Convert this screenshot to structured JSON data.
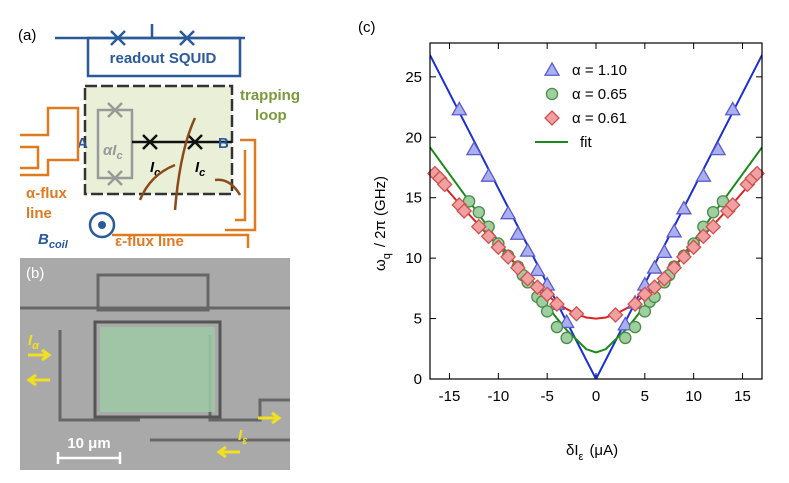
{
  "panel_a": {
    "label": "(a)",
    "squid_label": "readout SQUID",
    "trap_label": [
      "trapping",
      "loop"
    ],
    "node_a": "A",
    "node_b": "B",
    "alpha_ic": {
      "main": "αI",
      "sub": "c"
    },
    "ic_left": {
      "main": "I",
      "sub": "c"
    },
    "ic_right": {
      "main": "I",
      "sub": "c"
    },
    "alpha_flux": [
      "α-flux",
      "line"
    ],
    "eps_flux": "ε-flux line",
    "bcoil": {
      "main": "B",
      "sub": "coil"
    }
  },
  "panel_b": {
    "label": "(b)",
    "i_alpha": {
      "main": "I",
      "sub": "α"
    },
    "i_eps": {
      "main": "I",
      "sub": "ε"
    },
    "scale": "10 μm"
  },
  "chart_data": {
    "type": "scatter",
    "panel_label": "(c)",
    "x_label": {
      "main": "δI",
      "sub": "ε",
      "rest": "(μA)"
    },
    "y_label": {
      "main": "ω",
      "sub": "q",
      "rest": "/ 2π  (GHz)"
    },
    "xlim": [
      -17,
      17
    ],
    "ylim": [
      0,
      27.8
    ],
    "xticks": [
      -15,
      -10,
      -5,
      0,
      5,
      10,
      15
    ],
    "yticks": [
      0,
      5,
      10,
      15,
      20,
      25
    ],
    "series": [
      {
        "name": "α = 1.10",
        "marker": "triangle",
        "color": "#5a5ad0",
        "fill": "#aab0ee",
        "x": [
          -14,
          -12.5,
          -11,
          -9,
          -8,
          -7,
          -6,
          -5,
          -4,
          -3,
          3,
          4,
          5,
          6,
          7,
          8,
          9,
          11,
          12.5,
          14
        ],
        "values": [
          22.3,
          19,
          16.8,
          13.7,
          12,
          10.6,
          9,
          7.8,
          6.2,
          4.7,
          4.5,
          6.3,
          7.8,
          9.2,
          10.5,
          12.2,
          14.1,
          16.8,
          19,
          22.3
        ]
      },
      {
        "name": "α = 0.65",
        "marker": "circle",
        "color": "#4a8a4a",
        "fill": "#9fcf9f",
        "x": [
          -13,
          -12,
          -11,
          -10,
          -9,
          -8,
          -7.5,
          -7,
          -6,
          -5.5,
          -5,
          -4,
          -3,
          3,
          4,
          5,
          5.5,
          6,
          7,
          7.5,
          8,
          9,
          10,
          11,
          12,
          13
        ],
        "values": [
          14.7,
          13.8,
          12.6,
          11.2,
          10.2,
          9.3,
          8.6,
          8.0,
          6.8,
          6.4,
          5.6,
          4.3,
          3.4,
          3.4,
          4.3,
          5.6,
          6.4,
          6.8,
          8.0,
          8.6,
          9.3,
          10.2,
          11.2,
          12.6,
          13.8,
          14.7
        ]
      },
      {
        "name": "α = 0.61",
        "marker": "diamond",
        "color": "#d05050",
        "fill": "#f0a0a0",
        "x": [
          -16.5,
          -16,
          -15.5,
          -14,
          -13.5,
          -12,
          -11,
          -10,
          -9,
          -8,
          -7,
          -6,
          -5,
          -4,
          -2,
          2,
          4,
          5,
          6,
          7,
          8,
          9,
          10,
          11,
          12,
          13.5,
          14,
          15.5,
          16,
          16.5
        ],
        "values": [
          17,
          16.6,
          16.1,
          14.4,
          13.9,
          12.6,
          11.8,
          10.9,
          10.1,
          9.2,
          8.3,
          7.6,
          7.0,
          6.2,
          5.4,
          5.3,
          6.2,
          7.0,
          7.6,
          8.3,
          9.2,
          10.1,
          10.9,
          11.8,
          12.6,
          13.9,
          14.4,
          16.1,
          16.6,
          17
        ]
      }
    ],
    "fit_label": "fit",
    "fit_legend_color": "#1a8a1a",
    "fits": [
      {
        "color": "#1a2fd6",
        "x": [
          -17,
          0,
          17
        ],
        "values": [
          26.8,
          0,
          26.8
        ]
      },
      {
        "color": "#1a8a1a",
        "x": [
          -17,
          -14,
          -11,
          -8,
          -6,
          -4,
          -3,
          -2,
          -1,
          0,
          1,
          2,
          3,
          4,
          6,
          8,
          11,
          14,
          17
        ],
        "values": [
          19.17,
          15.84,
          12.51,
          9.23,
          7.07,
          5.02,
          4.04,
          3.27,
          2.47,
          2.2,
          2.47,
          3.27,
          4.04,
          5.02,
          7.07,
          9.23,
          12.51,
          15.84,
          19.17
        ]
      },
      {
        "color": "#e02020",
        "x": [
          -17,
          -14,
          -11,
          -8,
          -6,
          -4,
          -3,
          -2,
          -1,
          0,
          1,
          2,
          3,
          4,
          6,
          8,
          11,
          14,
          17
        ],
        "values": [
          17.3,
          14.5,
          11.85,
          9.31,
          7.63,
          6.27,
          5.79,
          5.37,
          5.09,
          5,
          5.09,
          5.37,
          5.79,
          6.27,
          7.63,
          9.31,
          11.85,
          14.5,
          17.3
        ]
      }
    ]
  }
}
